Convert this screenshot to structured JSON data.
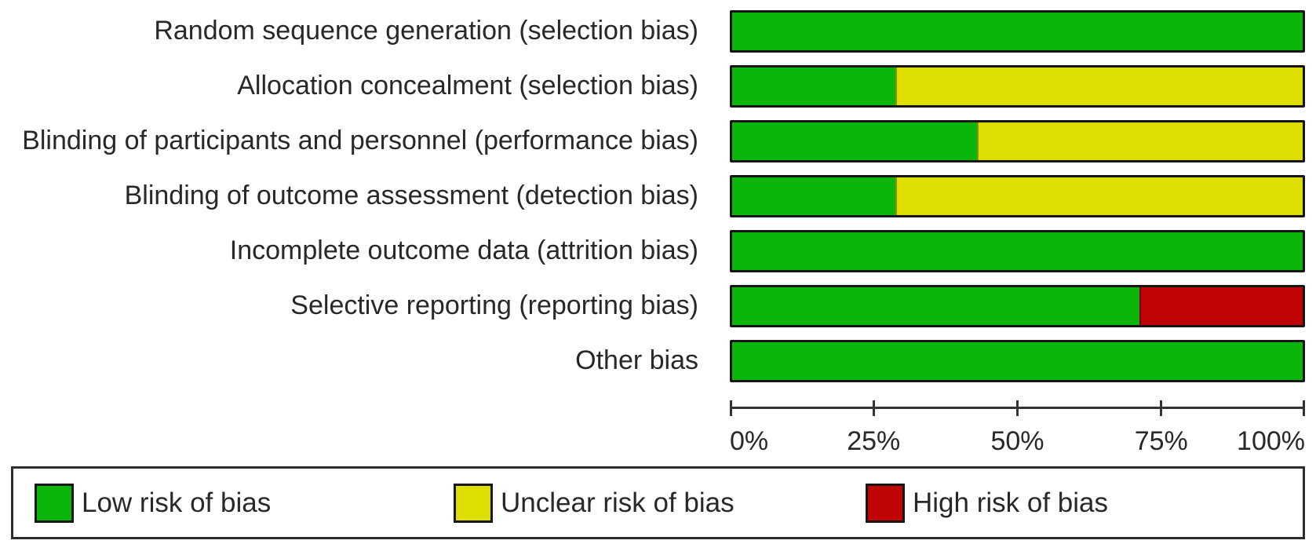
{
  "colors": {
    "background": "#ffffff",
    "text": "#282828",
    "axis": "#333333",
    "bar_border": "#161616",
    "low_risk": "#0ab60a",
    "unclear_risk": "#dede00",
    "high_risk": "#c00404"
  },
  "chart_data": {
    "type": "bar",
    "orientation": "horizontal",
    "stacked": true,
    "title": "",
    "xlabel": "",
    "ylabel": "",
    "categories": [
      "Random sequence generation (selection bias)",
      "Allocation concealment (selection bias)",
      "Blinding of participants and personnel (performance bias)",
      "Blinding of outcome assessment (detection bias)",
      "Incomplete outcome data (attrition bias)",
      "Selective reporting (reporting bias)",
      "Other bias"
    ],
    "series": [
      {
        "name": "Low risk of bias",
        "color": "#0ab60a",
        "values": [
          100,
          28.6,
          42.9,
          28.6,
          100,
          71.4,
          100
        ]
      },
      {
        "name": "Unclear risk of bias",
        "color": "#dede00",
        "values": [
          0,
          71.4,
          57.1,
          71.4,
          0,
          0,
          0
        ]
      },
      {
        "name": "High risk of bias",
        "color": "#c00404",
        "values": [
          0,
          0,
          0,
          0,
          0,
          28.6,
          0
        ]
      }
    ],
    "xlim": [
      0,
      100
    ],
    "x_ticks": [
      {
        "value": 0,
        "label": "0%"
      },
      {
        "value": 25,
        "label": "25%"
      },
      {
        "value": 50,
        "label": "50%"
      },
      {
        "value": 75,
        "label": "75%"
      },
      {
        "value": 100,
        "label": "100%"
      }
    ],
    "grid": false,
    "legend_position": "bottom"
  }
}
